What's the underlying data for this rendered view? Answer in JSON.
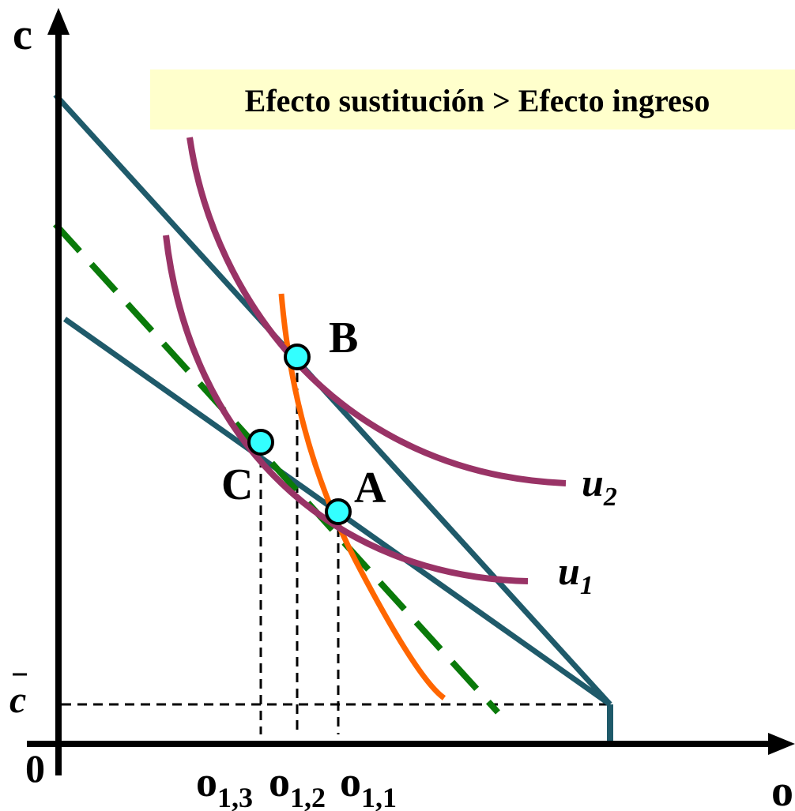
{
  "title_box": {
    "text": "Efecto sustitución > Efecto ingreso",
    "bg": "#ffffcc"
  },
  "axes": {
    "y_label": "c",
    "x_label": "o",
    "origin_label": "0",
    "c_bar_label": "c"
  },
  "points": {
    "A": "A",
    "B": "B",
    "C": "C"
  },
  "curves": {
    "u1": "u",
    "u1_sub": "1",
    "u2": "u",
    "u2_sub": "2"
  },
  "ticks": {
    "o13": {
      "main": "o",
      "sub": "1,3"
    },
    "o12": {
      "main": "o",
      "sub": "1,2"
    },
    "o11": {
      "main": "o",
      "sub": "1,1"
    }
  },
  "colors": {
    "budget_line": "#1f5a6a",
    "comp_line": "#0a7a0a",
    "indiff": "#993366",
    "offer": "#ff6600",
    "point_fill": "#33ffff"
  }
}
